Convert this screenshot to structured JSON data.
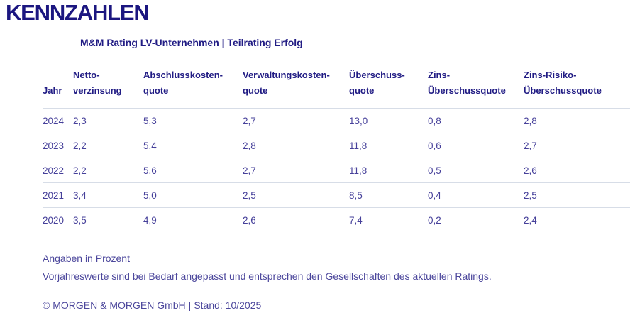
{
  "page": {
    "title": "KENNZAHLEN",
    "subtitle": "M&M Rating LV-Unternehmen | Teilrating Erfolg"
  },
  "table": {
    "columns": [
      {
        "lines": [
          "Jahr"
        ]
      },
      {
        "lines": [
          "Netto-",
          "verzinsung"
        ]
      },
      {
        "lines": [
          "Abschlusskosten-",
          "quote"
        ]
      },
      {
        "lines": [
          "Verwaltungskosten-",
          "quote"
        ]
      },
      {
        "lines": [
          "Überschuss-",
          "quote"
        ]
      },
      {
        "lines": [
          "Zins-",
          "Überschussquote"
        ]
      },
      {
        "lines": [
          "Zins-Risiko-",
          "Überschussquote"
        ]
      }
    ],
    "rows": [
      {
        "jahr": "2024",
        "values": [
          "2,3",
          "5,3",
          "2,7",
          "13,0",
          "0,8",
          "2,8"
        ]
      },
      {
        "jahr": "2023",
        "values": [
          "2,2",
          "5,4",
          "2,8",
          "11,8",
          "0,6",
          "2,7"
        ]
      },
      {
        "jahr": "2022",
        "values": [
          "2,2",
          "5,6",
          "2,7",
          "11,8",
          "0,5",
          "2,6"
        ]
      },
      {
        "jahr": "2021",
        "values": [
          "3,4",
          "5,0",
          "2,5",
          "8,5",
          "0,4",
          "2,5"
        ]
      },
      {
        "jahr": "2020",
        "values": [
          "3,5",
          "4,9",
          "2,6",
          "7,4",
          "0,2",
          "2,4"
        ]
      }
    ]
  },
  "chart_data": {
    "type": "table",
    "title": "KENNZAHLEN",
    "subtitle": "M&M Rating LV-Unternehmen | Teilrating Erfolg",
    "unit": "Prozent",
    "columns": [
      "Jahr",
      "Nettoverzinsung",
      "Abschlusskostenquote",
      "Verwaltungskostenquote",
      "Überschussquote",
      "Zins-Überschussquote",
      "Zins-Risiko-Überschussquote"
    ],
    "rows": [
      [
        2024,
        2.3,
        5.3,
        2.7,
        13.0,
        0.8,
        2.8
      ],
      [
        2023,
        2.2,
        5.4,
        2.8,
        11.8,
        0.6,
        2.7
      ],
      [
        2022,
        2.2,
        5.6,
        2.7,
        11.8,
        0.5,
        2.6
      ],
      [
        2021,
        3.4,
        5.0,
        2.5,
        8.5,
        0.4,
        2.5
      ],
      [
        2020,
        3.5,
        4.9,
        2.6,
        7.4,
        0.2,
        2.4
      ]
    ]
  },
  "footnotes": {
    "unit_note": "Angaben in Prozent",
    "adjustment_note": "Vorjahreswerte sind bei Bedarf angepasst und entsprechen den Gesellschaften des aktuellen Ratings."
  },
  "footer": {
    "copyright": "© MORGEN & MORGEN GmbH",
    "separator": "|",
    "stand": "Stand: 10/2025"
  },
  "colors": {
    "heading": "#1b1680",
    "header_text": "#211c84",
    "cell_text": "#46409a",
    "footer_text": "#4c479c",
    "divider": "#d7dde7",
    "background": "#ffffff"
  }
}
